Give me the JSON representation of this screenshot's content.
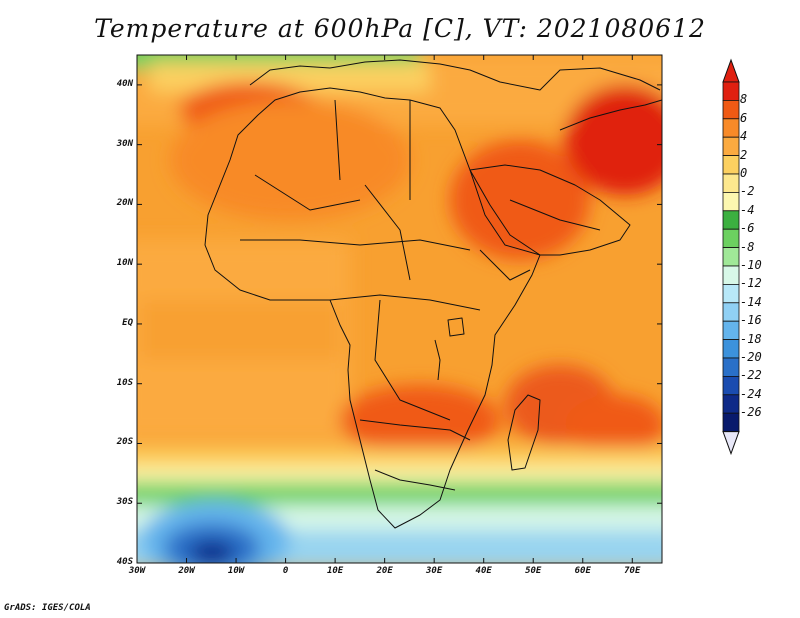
{
  "title": "Temperature at 600hPa [C], VT: 2021080612",
  "credit": "GrADS: IGES/COLA",
  "map": {
    "lon_range": [
      -30,
      76
    ],
    "lat_range": [
      -40,
      45
    ],
    "lat_ticks": [
      {
        "value": 40,
        "label": "40N"
      },
      {
        "value": 30,
        "label": "30N"
      },
      {
        "value": 20,
        "label": "20N"
      },
      {
        "value": 10,
        "label": "10N"
      },
      {
        "value": 0,
        "label": "EQ"
      },
      {
        "value": -10,
        "label": "10S"
      },
      {
        "value": -20,
        "label": "20S"
      },
      {
        "value": -30,
        "label": "30S"
      },
      {
        "value": -40,
        "label": "40S"
      }
    ],
    "lon_ticks": [
      {
        "value": -30,
        "label": "30W"
      },
      {
        "value": -20,
        "label": "20W"
      },
      {
        "value": -10,
        "label": "10W"
      },
      {
        "value": 0,
        "label": "0"
      },
      {
        "value": 10,
        "label": "10E"
      },
      {
        "value": 20,
        "label": "20E"
      },
      {
        "value": 30,
        "label": "30E"
      },
      {
        "value": 40,
        "label": "40E"
      },
      {
        "value": 50,
        "label": "50E"
      },
      {
        "value": 60,
        "label": "60E"
      },
      {
        "value": 70,
        "label": "70E"
      }
    ],
    "field_zones": [
      {
        "name": "southern-ocean",
        "lon": [
          -30,
          76
        ],
        "lat": [
          -40,
          -25
        ],
        "color": "#98d4f0"
      },
      {
        "name": "sahara-west",
        "lon": [
          -18,
          10
        ],
        "lat": [
          15,
          32
        ],
        "color": "#f8a030"
      },
      {
        "name": "arabia-iran",
        "lon": [
          40,
          76
        ],
        "lat": [
          15,
          42
        ],
        "color": "#f28a28"
      },
      {
        "name": "madagascar-east",
        "lon": [
          45,
          76
        ],
        "lat": [
          -24,
          -8
        ],
        "color": "#ec5a1a"
      },
      {
        "name": "cold-core",
        "lon": [
          -22,
          -5
        ],
        "lat": [
          -40,
          -34
        ],
        "color": "#1a40a8"
      }
    ]
  },
  "colorbar": {
    "levels": [
      "8",
      "6",
      "4",
      "2",
      "0",
      "-2",
      "-4",
      "-6",
      "-8",
      "-10",
      "-12",
      "-14",
      "-16",
      "-18",
      "-20",
      "-22",
      "-24",
      "-26"
    ],
    "colors": [
      "#e02010",
      "#f05a14",
      "#f88a28",
      "#fbaa40",
      "#fcd060",
      "#fde88e",
      "#fcf7b0",
      "#3cb040",
      "#6cd060",
      "#a0e898",
      "#d8f8e8",
      "#b8e8f8",
      "#90d0f4",
      "#64b4ec",
      "#3c92dc",
      "#2a70c8",
      "#1a4cb0",
      "#0e2a88",
      "#081a6c"
    ],
    "over_color": "#e02010",
    "under_color": "#e8e8f8"
  }
}
